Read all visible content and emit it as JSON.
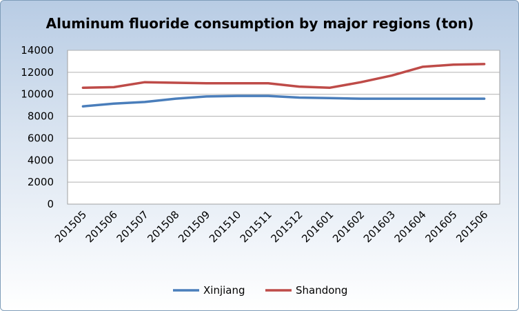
{
  "chart_data": {
    "type": "line",
    "title": "Aluminum fluoride consumption by major regions (ton)",
    "categories": [
      "201505",
      "201506",
      "201507",
      "201508",
      "201509",
      "201510",
      "201511",
      "201512",
      "201601",
      "201602",
      "201603",
      "201604",
      "201605",
      "201506"
    ],
    "series": [
      {
        "name": "Xinjiang",
        "color": "#4a7ebb",
        "values": [
          8900,
          9150,
          9300,
          9600,
          9800,
          9850,
          9850,
          9700,
          9650,
          9600,
          9600,
          9600,
          9600,
          9600
        ]
      },
      {
        "name": "Shandong",
        "color": "#be4b48",
        "values": [
          10600,
          10650,
          11100,
          11050,
          11000,
          11000,
          11000,
          10700,
          10600,
          11100,
          11700,
          12500,
          12700,
          12750
        ]
      }
    ],
    "ylim": [
      0,
      14000
    ],
    "yticks": [
      "14000",
      "12000",
      "10000",
      "8000",
      "6000",
      "4000",
      "2000",
      "0"
    ],
    "grid": true,
    "legend_position": "bottom"
  }
}
